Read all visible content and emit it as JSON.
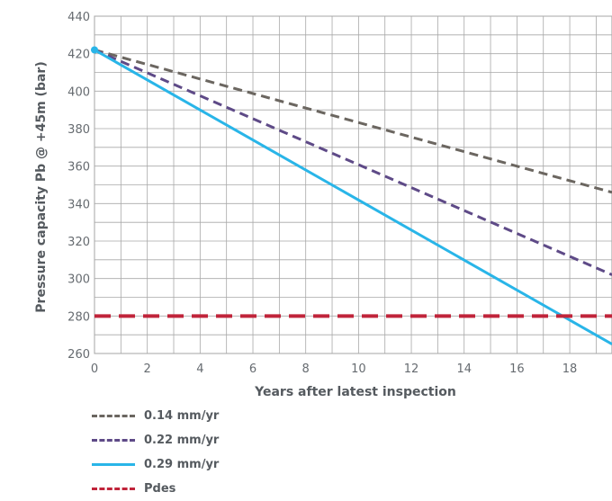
{
  "chart_data": {
    "type": "line",
    "title": "",
    "xlabel": "Years after latest inspection",
    "ylabel": "Pressure capacity Pb @ +45m (bar)",
    "xlim": [
      0,
      19.6
    ],
    "ylim": [
      260,
      440
    ],
    "xticks": [
      0,
      2,
      4,
      6,
      8,
      10,
      12,
      14,
      16,
      18
    ],
    "yticks": [
      260,
      280,
      300,
      320,
      340,
      360,
      380,
      400,
      420,
      440
    ],
    "grid": true,
    "legend_position": "bottom-left",
    "series": [
      {
        "name": "0.14 mm/yr",
        "color": "#6b6660",
        "dash": "dashed",
        "x": [
          0,
          19.6
        ],
        "y": [
          422,
          346
        ]
      },
      {
        "name": "0.22 mm/yr",
        "color": "#5e4a87",
        "dash": "dashed",
        "x": [
          0,
          19.6
        ],
        "y": [
          422,
          302
        ]
      },
      {
        "name": "0.29 mm/yr",
        "color": "#29b5e8",
        "dash": "solid",
        "x": [
          0,
          19.6
        ],
        "y": [
          422,
          265
        ]
      },
      {
        "name": "Pdes",
        "color": "#c0243a",
        "dash": "dashed",
        "x": [
          0,
          19.6
        ],
        "y": [
          280,
          280
        ]
      }
    ],
    "start_marker": {
      "x": 0,
      "y": 422,
      "color": "#29b5e8"
    }
  }
}
